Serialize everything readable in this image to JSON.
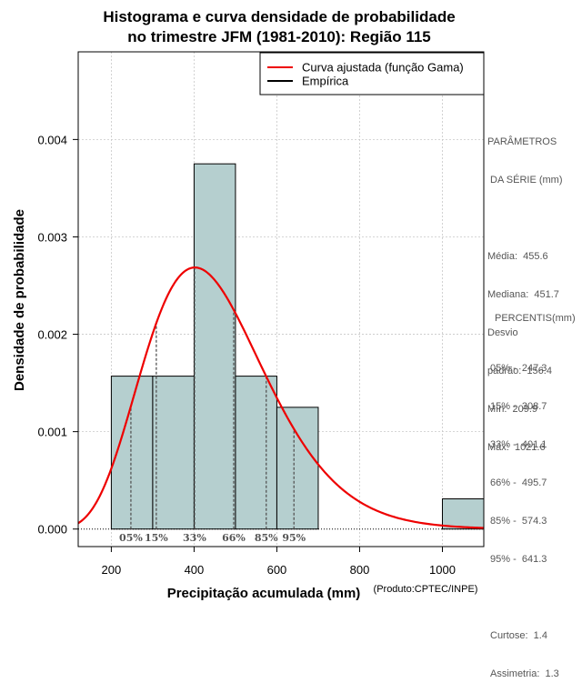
{
  "chart_data": {
    "type": "bar",
    "title_line1": "Histograma e curva densidade de probabilidade",
    "title_line2": "no trimestre JFM (1981-2010): Região 115",
    "xlabel": "Precipitação acumulada (mm)",
    "ylabel": "Densidade de probabilidade",
    "credit": "(Produto:CPTEC/INPE)",
    "xlim": [
      120,
      1100
    ],
    "ylim": [
      -0.00018,
      0.0049
    ],
    "x_ticks": [
      200,
      400,
      600,
      800,
      1000
    ],
    "y_ticks": [
      0.0,
      0.001,
      0.002,
      0.003,
      0.004
    ],
    "y_tick_labels": [
      "0.000",
      "0.001",
      "0.002",
      "0.003",
      "0.004"
    ],
    "bins": [
      {
        "start": 200,
        "end": 300,
        "density": 0.00157
      },
      {
        "start": 300,
        "end": 400,
        "density": 0.00157
      },
      {
        "start": 400,
        "end": 500,
        "density": 0.00375
      },
      {
        "start": 500,
        "end": 600,
        "density": 0.00157
      },
      {
        "start": 600,
        "end": 700,
        "density": 0.00125
      },
      {
        "start": 1000,
        "end": 1100,
        "density": 0.00031
      }
    ],
    "bar_color": "#b5cfcf",
    "curve_color": "#ee0000",
    "curve": {
      "name": "Curva ajustada (função Gama)",
      "distribution": "gamma",
      "mean": 455.6,
      "std": 156.4
    },
    "legend": [
      {
        "label": "Curva ajustada (função Gama)",
        "color": "#ee0000"
      },
      {
        "label": "Empírica",
        "color": "#000000"
      }
    ],
    "percentile_markers": [
      {
        "label": "05%",
        "value": 247.3
      },
      {
        "label": "15%",
        "value": 308.7
      },
      {
        "label": "33%",
        "value": 401.1
      },
      {
        "label": "66%",
        "value": 495.7
      },
      {
        "label": "85%",
        "value": 574.3
      },
      {
        "label": "95%",
        "value": 641.3
      }
    ]
  },
  "side_panel": {
    "params_title_1": "PARÂMETROS",
    "params_title_2": " DA SÉRIE (mm)",
    "media": "Média:  455.6",
    "mediana": "Mediana:  451.7",
    "desvio_1": "Desvio",
    "desvio_2": "padrão:  156.4",
    "min": "Mín:  209.9",
    "max": "Máx:  1021.6",
    "percentis_title": "PERCENTIS(mm)",
    "p05": "05% -  247.3",
    "p15": "15% -  308.7",
    "p33": "33% -  401.1",
    "p66": "66% -  495.7",
    "p85": "85% -  574.3",
    "p95": "95% -  641.3",
    "curtose": "Curtose:  1.4",
    "assimetria": "Assimetria:  1.3"
  }
}
